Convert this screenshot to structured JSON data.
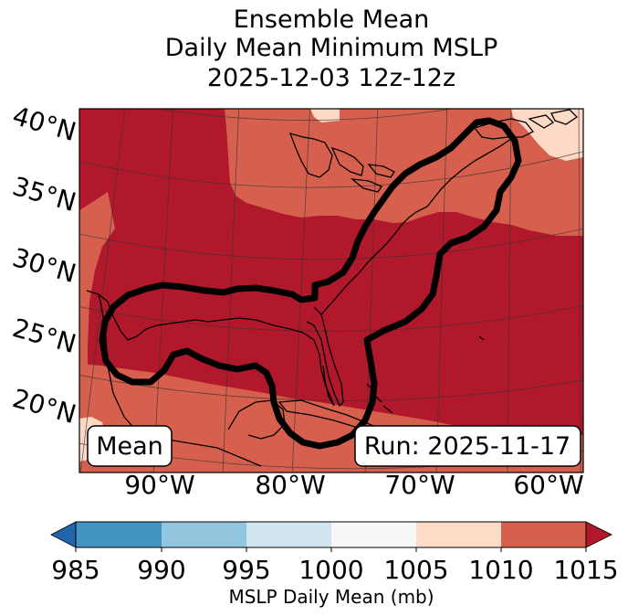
{
  "title": {
    "line1": "Ensemble Mean",
    "line2": "Daily Mean Minimum MSLP",
    "line3": "2025-12-03 12z-12z"
  },
  "map": {
    "lat_labels": [
      "40°N",
      "35°N",
      "30°N",
      "25°N",
      "20°N"
    ],
    "lon_labels": [
      "90°W",
      "80°W",
      "70°W",
      "60°W"
    ],
    "mean_label": "Mean",
    "run_label": "Run: 2025-11-17",
    "colors": {
      "lt_1000": "#c8e0ee",
      "c1005_1010": "#fdd9c6",
      "c1010_1015": "#d6604d",
      "gt_1015": "#b2182b",
      "contour": "#000000",
      "coast": "#000000",
      "grid": "#333333"
    }
  },
  "colorbar": {
    "ticks": [
      "985",
      "990",
      "995",
      "1000",
      "1005",
      "1010",
      "1015"
    ],
    "label": "MSLP Daily Mean (mb)",
    "colors": [
      "#2166ac",
      "#4393c3",
      "#92c5de",
      "#d1e5f0",
      "#f7f7f7",
      "#fddbc7",
      "#d6604d",
      "#b2182b"
    ]
  }
}
